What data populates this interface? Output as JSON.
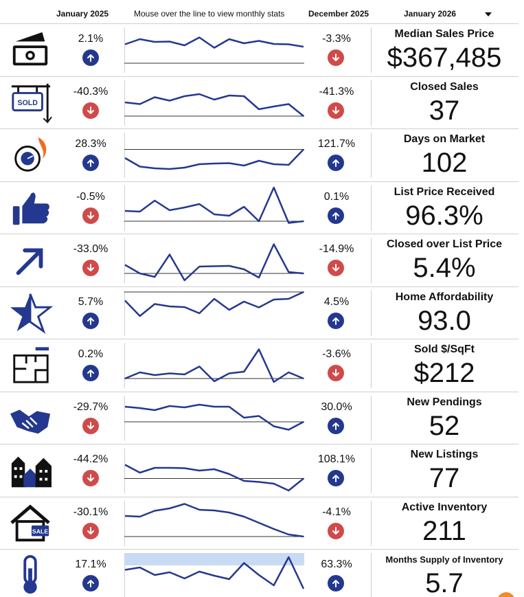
{
  "header": {
    "left_period": "January 2025",
    "instruction": "Mouse over the line to view monthly stats",
    "right_period": "December 2025",
    "selected_period": "January 2026"
  },
  "colors": {
    "line": "#24388f",
    "up_badge": "#24388f",
    "down_badge": "#d04a4a",
    "band": "#c9daf3"
  },
  "metrics": [
    {
      "id": "median-sales-price",
      "icon": "money-stack-icon",
      "title": "Median Sales Price",
      "value": "$367,485",
      "yoy_pct": "2.1%",
      "yoy_dir": "up",
      "mom_pct": "-3.3%",
      "mom_dir": "down",
      "series": [
        0.55,
        0.7,
        0.62,
        0.63,
        0.52,
        0.75,
        0.45,
        0.7,
        0.58,
        0.65,
        0.56,
        0.55,
        0.48
      ],
      "baseline": 0.0
    },
    {
      "id": "closed-sales",
      "icon": "sold-sign-icon",
      "title": "Closed Sales",
      "value": "37",
      "yoy_pct": "-40.3%",
      "yoy_dir": "down",
      "mom_pct": "-41.3%",
      "mom_dir": "down",
      "series": [
        0.4,
        0.35,
        0.55,
        0.45,
        0.58,
        0.64,
        0.48,
        0.6,
        0.58,
        0.2,
        0.28,
        0.35,
        0.0
      ],
      "baseline": 0.0
    },
    {
      "id": "days-on-market",
      "icon": "stopwatch-icon",
      "title": "Days on Market",
      "value": "102",
      "yoy_pct": "28.3%",
      "yoy_dir": "up",
      "mom_pct": "121.7%",
      "mom_dir": "up",
      "series": [
        0.3,
        0.05,
        0.0,
        -0.02,
        0.02,
        0.12,
        0.14,
        0.15,
        0.08,
        0.22,
        0.12,
        0.1,
        0.55
      ],
      "baseline": 0.55
    },
    {
      "id": "list-price-received",
      "icon": "thumbs-up-icon",
      "title": "List Price Received",
      "value": "96.3%",
      "yoy_pct": "-0.5%",
      "yoy_dir": "down",
      "mom_pct": "0.1%",
      "mom_dir": "up",
      "series": [
        0.3,
        0.28,
        0.6,
        0.32,
        0.4,
        0.5,
        0.2,
        0.16,
        0.42,
        0.0,
        0.98,
        -0.05,
        0.0
      ],
      "baseline": 0.0
    },
    {
      "id": "closed-over-list-price",
      "icon": "arrow-up-right-icon",
      "title": "Closed over List Price",
      "value": "5.4%",
      "yoy_pct": "-33.0%",
      "yoy_dir": "down",
      "mom_pct": "-14.9%",
      "mom_dir": "down",
      "series": [
        0.25,
        0.0,
        -0.1,
        0.55,
        -0.2,
        0.2,
        0.21,
        0.22,
        0.12,
        -0.12,
        0.85,
        0.04,
        0.0
      ],
      "baseline": 0.0
    },
    {
      "id": "home-affordability",
      "icon": "star-icon",
      "title": "Home Affordability",
      "value": "93.0",
      "yoy_pct": "5.7%",
      "yoy_dir": "up",
      "mom_pct": "4.5%",
      "mom_dir": "up",
      "series": [
        0.75,
        0.3,
        0.65,
        0.58,
        0.56,
        0.38,
        0.8,
        0.48,
        0.72,
        0.55,
        0.78,
        0.8,
        1.0
      ],
      "baseline": 1.0
    },
    {
      "id": "sold-per-sqft",
      "icon": "floor-plan-icon",
      "title": "Sold $/SqFt",
      "value": "$212",
      "yoy_pct": "0.2%",
      "yoy_dir": "up",
      "mom_pct": "-3.6%",
      "mom_dir": "down",
      "series": [
        0.0,
        0.18,
        0.1,
        0.15,
        0.12,
        0.35,
        -0.08,
        0.15,
        0.2,
        0.85,
        -0.1,
        0.18,
        0.0
      ],
      "baseline": 0.0
    },
    {
      "id": "new-pendings",
      "icon": "handshake-icon",
      "title": "New Pendings",
      "value": "52",
      "yoy_pct": "-29.7%",
      "yoy_dir": "down",
      "mom_pct": "30.0%",
      "mom_dir": "up",
      "series": [
        0.72,
        0.68,
        0.62,
        0.74,
        0.7,
        0.78,
        0.72,
        0.72,
        0.4,
        0.45,
        0.15,
        0.05,
        0.28
      ],
      "baseline": 0.28
    },
    {
      "id": "new-listings",
      "icon": "houses-icon",
      "title": "New Listings",
      "value": "77",
      "yoy_pct": "-44.2%",
      "yoy_dir": "down",
      "mom_pct": "108.1%",
      "mom_dir": "up",
      "series": [
        0.55,
        0.32,
        0.46,
        0.46,
        0.45,
        0.38,
        0.42,
        0.28,
        0.08,
        0.05,
        0.0,
        -0.2,
        0.15
      ],
      "baseline": 0.15
    },
    {
      "id": "active-inventory",
      "icon": "house-sale-icon",
      "title": "Active Inventory",
      "value": "211",
      "yoy_pct": "-30.1%",
      "yoy_dir": "down",
      "mom_pct": "-4.1%",
      "mom_dir": "down",
      "series": [
        0.6,
        0.58,
        0.75,
        0.82,
        0.95,
        0.78,
        0.76,
        0.7,
        0.58,
        0.4,
        0.22,
        0.06,
        0.0
      ],
      "baseline": 0.0
    },
    {
      "id": "months-supply",
      "icon": "thermometer-icon",
      "title": "Months Supply of Inventory",
      "value": "5.7",
      "yoy_pct": "17.1%",
      "yoy_dir": "up",
      "mom_pct": "63.3%",
      "mom_dir": "up",
      "series": [
        0.55,
        0.62,
        0.4,
        0.48,
        0.3,
        0.5,
        0.38,
        0.28,
        0.75,
        0.4,
        0.1,
        0.92,
        0.0
      ],
      "baseline": null,
      "band": true,
      "small_title": true
    }
  ]
}
